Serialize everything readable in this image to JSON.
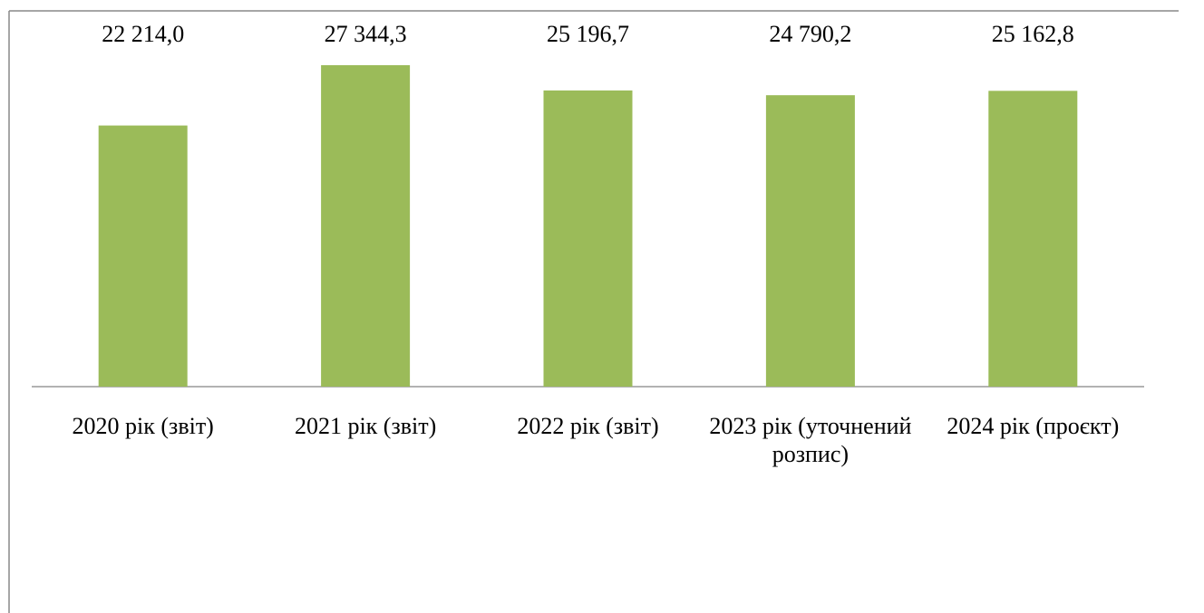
{
  "chart_data": {
    "type": "bar",
    "categories": [
      "2020 рік (звіт)",
      "2021 рік (звіт)",
      "2022 рік (звіт)",
      "2023 рік (уточнений розпис)",
      "2024 рік (проєкт)"
    ],
    "values": [
      22214.0,
      27344.3,
      25196.7,
      24790.2,
      25162.8
    ],
    "value_labels": [
      "22 214,0",
      "27 344,3",
      "25 196,7",
      "24 790,2",
      "25 162,8"
    ],
    "color": "#9bbb59"
  }
}
